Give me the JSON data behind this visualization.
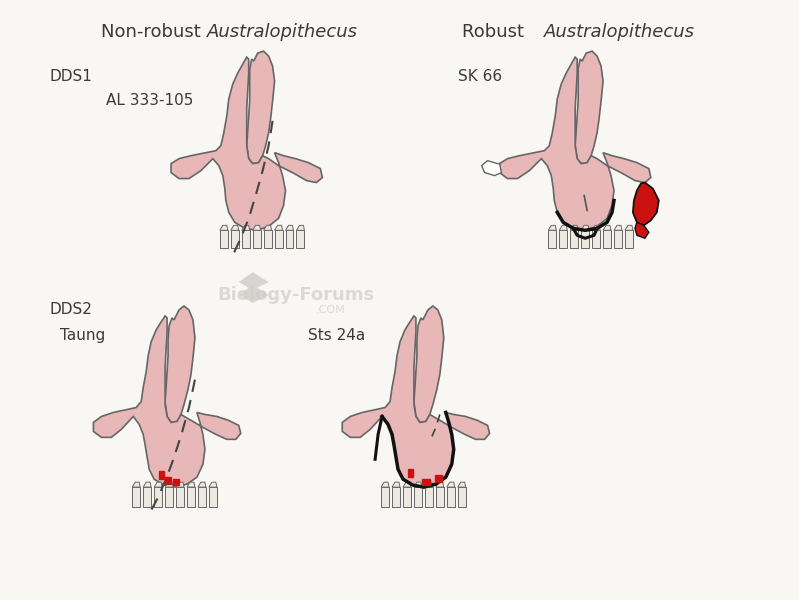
{
  "bg_color": "#f8f7f4",
  "pink_fill": "#e8b8b8",
  "pink_light": "#edc8c8",
  "outline_color": "#666666",
  "red_color": "#cc1111",
  "white_fill": "#ffffff",
  "tooth_fill": "#ede8e0",
  "title_left_normal": "Non-robust ",
  "title_left_italic": "Australopithecus",
  "title_right_normal": "Robust ",
  "title_right_italic": "Australopithecus",
  "label_dds1": "DDS1",
  "label_dds2": "DDS2",
  "label_al": "AL 333-105",
  "label_sk": "SK 66",
  "label_taung": "Taung",
  "label_sts": "Sts 24a",
  "fontsize_title": 13,
  "fontsize_label": 11
}
